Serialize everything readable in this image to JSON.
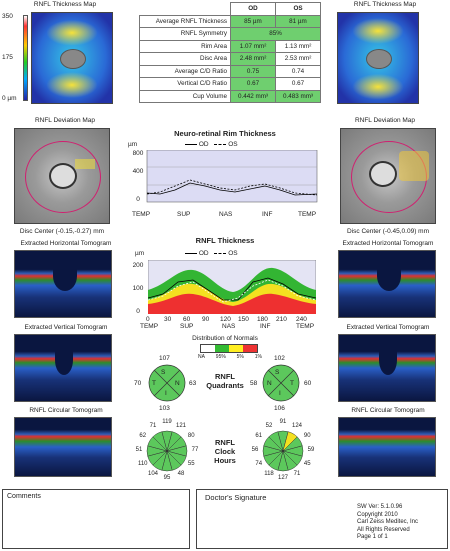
{
  "rnfl_map": {
    "title": "RNFL Thickness Map",
    "scale": [
      "350",
      "175",
      "0 µm"
    ]
  },
  "summary": {
    "headers": [
      "OD",
      "OS"
    ],
    "rows": [
      {
        "label": "Average RNFL Thickness",
        "od": "85 µm",
        "os": "81 µm"
      },
      {
        "label": "RNFL Symmetry",
        "merged": "85%"
      },
      {
        "label": "Rim Area",
        "od": "1.07 mm²",
        "os": "1.13 mm²"
      },
      {
        "label": "Disc Area",
        "od": "2.48 mm²",
        "os": "2.53 mm²"
      },
      {
        "label": "Average C/D Ratio",
        "od": "0.75",
        "os": "0.74"
      },
      {
        "label": "Vertical C/D Ratio",
        "od": "0.67",
        "os": "0.67"
      },
      {
        "label": "Cup Volume",
        "od": "0.442 mm³",
        "os": "0.483 mm³"
      }
    ]
  },
  "deviation": {
    "title": "RNFL Deviation Map",
    "disc_od": "Disc Center (-0.15,-0.27) mm",
    "disc_os": "Disc Center (-0.45,0.09) mm"
  },
  "rim_chart": {
    "title": "Neuro-retinal Rim Thickness",
    "unit": "µm",
    "legend_od": "OD",
    "legend_os": "OS",
    "yticks": [
      "800",
      "400",
      "0"
    ],
    "xticks": [
      "TEMP",
      "SUP",
      "NAS",
      "INF",
      "TEMP"
    ]
  },
  "rnfl_chart": {
    "title": "RNFL Thickness",
    "unit": "µm",
    "legend_od": "OD",
    "legend_os": "OS",
    "yticks": [
      "200",
      "100",
      "0"
    ],
    "xticks": [
      "0",
      "30",
      "60",
      "90",
      "120",
      "150",
      "180",
      "210",
      "240"
    ],
    "xcat": [
      "TEMP",
      "SUP",
      "NAS",
      "INF",
      "TEMP"
    ]
  },
  "tomograms": {
    "horizontal": "Extracted Horizontal Tomogram",
    "vertical": "Extracted Vertical Tomogram",
    "circular": "RNFL Circular Tomogram"
  },
  "normals": {
    "title": "Distribution of Normals",
    "cats": [
      "NA",
      "95%",
      "5%",
      "1%"
    ]
  },
  "quadrants": {
    "title": [
      "RNFL",
      "Quadrants"
    ],
    "od": {
      "S": "107",
      "N": "63",
      "I": "103",
      "T": "70"
    },
    "os": {
      "S": "102",
      "N": "58",
      "I": "106",
      "T": "60"
    },
    "letters": [
      "S",
      "N",
      "I",
      "T"
    ]
  },
  "clock": {
    "title": [
      "RNFL",
      "Clock",
      "Hours"
    ],
    "od": [
      "121",
      "80",
      "77",
      "55",
      "48",
      "95",
      "104",
      "110",
      "51",
      "62",
      "71",
      "119"
    ],
    "os": [
      "124",
      "90",
      "59",
      "45",
      "71",
      "127",
      "118",
      "74",
      "56",
      "61",
      "52",
      "91"
    ]
  },
  "footer": {
    "comments": "Comments",
    "signature": "Doctor's Signature",
    "info": [
      "SW Ver: 5.1.0.96",
      "Copyright 2010",
      "Carl Zeiss Meditec, Inc",
      "All Rights Reserved",
      "Page 1 of 1"
    ]
  }
}
